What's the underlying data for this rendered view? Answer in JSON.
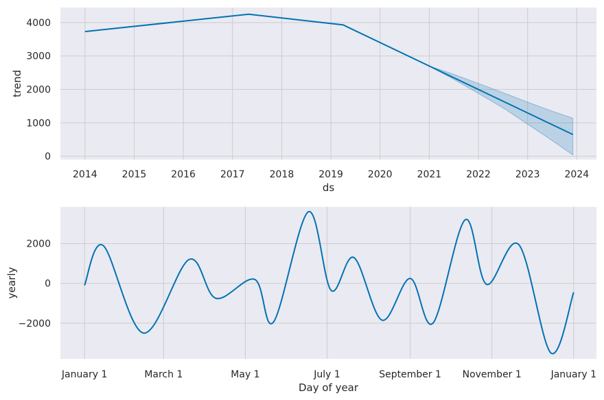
{
  "chart_data": [
    {
      "type": "line",
      "title": "",
      "xlabel": "ds",
      "ylabel": "trend",
      "x_ticks": [
        "2014",
        "2015",
        "2016",
        "2017",
        "2018",
        "2019",
        "2020",
        "2021",
        "2022",
        "2023",
        "2024"
      ],
      "y_ticks": [
        "0",
        "1000",
        "2000",
        "3000",
        "4000"
      ],
      "xlim": [
        2013.5,
        2024.4
      ],
      "ylim": [
        -100,
        4450
      ],
      "grid": true,
      "series": [
        {
          "x": [
            2014.0,
            2017.33,
            2019.25,
            2021.0,
            2023.92
          ],
          "y": [
            3730,
            4250,
            3930,
            2700,
            650
          ]
        }
      ],
      "uncertainty_band": {
        "x": [
          2021.0,
          2021.5,
          2022.0,
          2022.5,
          2023.0,
          2023.5,
          2023.92
        ],
        "lower": [
          2700,
          2300,
          1880,
          1450,
          960,
          470,
          40
        ],
        "upper": [
          2700,
          2450,
          2180,
          1900,
          1620,
          1350,
          1140
        ]
      },
      "colors": {
        "line": "#0072b2",
        "band": "#0072b2",
        "background": "#eaeaf2",
        "grid": "#cccccc"
      }
    },
    {
      "type": "line",
      "title": "",
      "xlabel": "Day of year",
      "ylabel": "yearly",
      "x_ticks": [
        "January 1",
        "March 1",
        "May 1",
        "July 1",
        "September 1",
        "November 1",
        "January 1"
      ],
      "x_tick_days": [
        0,
        59,
        120,
        181,
        243,
        304,
        365
      ],
      "y_ticks": [
        "2000",
        "0",
        "−2000"
      ],
      "y_tick_values": [
        2000,
        0,
        -2000
      ],
      "xlim": [
        -18,
        382
      ],
      "ylim": [
        -3800,
        3850
      ],
      "grid": true,
      "series": [
        {
          "x": [
            0,
            14,
            44,
            78,
            98,
            127,
            141,
            167,
            184,
            201,
            222,
            243,
            260,
            284,
            300,
            324,
            348,
            365
          ],
          "y": [
            -100,
            1900,
            -2500,
            1200,
            -750,
            200,
            -1950,
            3600,
            -350,
            1300,
            -1850,
            250,
            -2000,
            3200,
            -50,
            1950,
            -3500,
            -450
          ]
        }
      ],
      "colors": {
        "line": "#0072b2",
        "background": "#eaeaf2",
        "grid": "#cccccc"
      }
    }
  ]
}
